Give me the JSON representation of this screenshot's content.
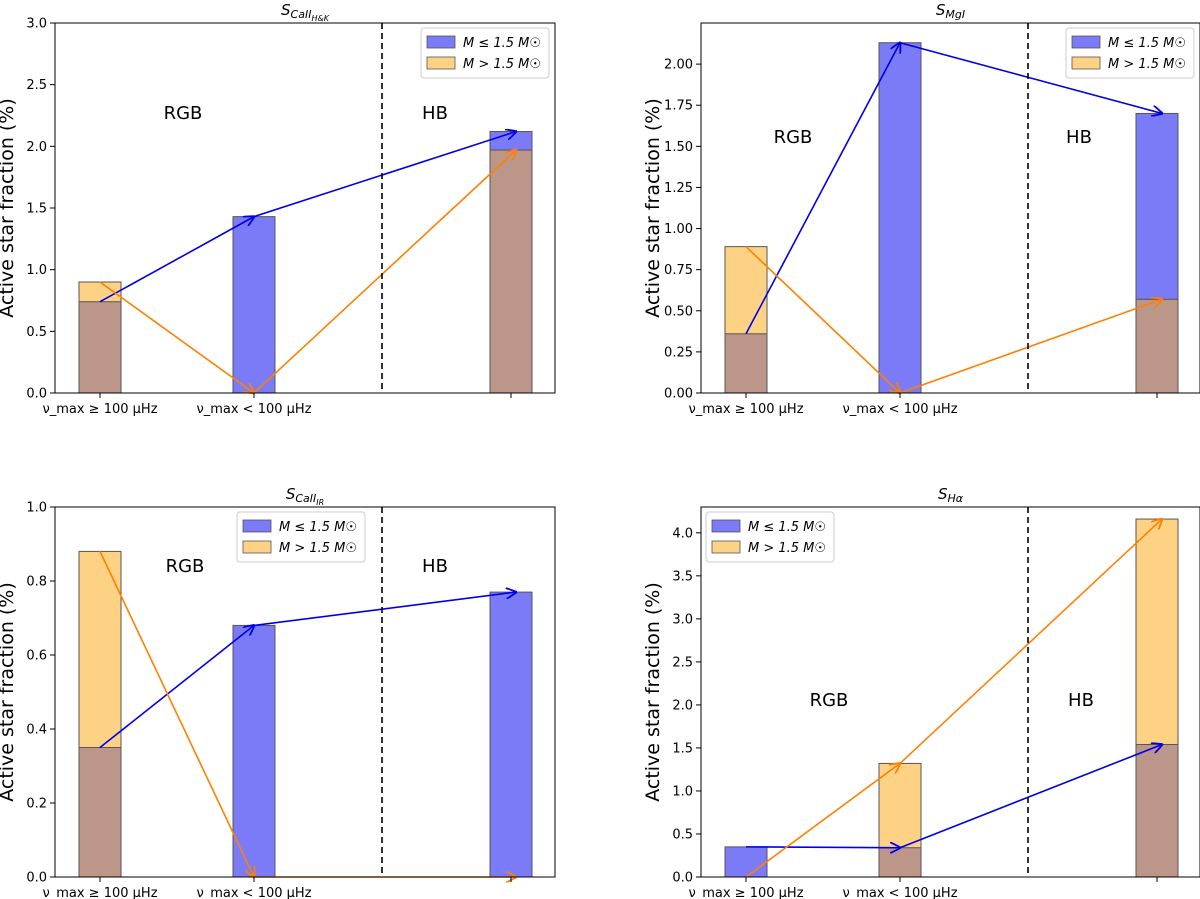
{
  "colors": {
    "low_mass": "#7b7bf7",
    "high_mass": "#fed285",
    "overlap": "#bd968a",
    "blue_arrow": "#0000e8",
    "orange_arrow": "#ff8000"
  },
  "legend": {
    "low_mass_label": "M ≤ 1.5 M☉",
    "high_mass_label": "M > 1.5 M☉"
  },
  "x_tick_labels": [
    "ν_max ≥ 100 μHz",
    "ν_max < 100 μHz"
  ],
  "chart_data": [
    {
      "type": "bar",
      "title": "S_CaII_H&K",
      "ylabel": "Active star fraction (%)",
      "ylim": [
        0,
        3.0
      ],
      "yticks": [
        0.0,
        0.5,
        1.0,
        1.5,
        2.0,
        2.5,
        3.0
      ],
      "ytick_labels": [
        "0.0",
        "0.5",
        "1.0",
        "1.5",
        "2.0",
        "2.5",
        "3.0"
      ],
      "regions": [
        "RGB",
        "HB"
      ],
      "legend_position": "top-right",
      "categories": [
        "ν_max ≥ 100 μHz",
        "ν_max < 100 μHz",
        "HB"
      ],
      "series": [
        {
          "name": "M ≤ 1.5 M☉",
          "values": [
            0.74,
            1.43,
            2.12
          ]
        },
        {
          "name": "M > 1.5 M☉",
          "values": [
            0.9,
            0.0,
            1.97
          ]
        }
      ]
    },
    {
      "type": "bar",
      "title": "S_MgI",
      "ylabel": "Active star fraction (%)",
      "ylim": [
        0,
        2.25
      ],
      "yticks": [
        0.0,
        0.25,
        0.5,
        0.75,
        1.0,
        1.25,
        1.5,
        1.75,
        2.0
      ],
      "ytick_labels": [
        "0.00",
        "0.25",
        "0.50",
        "0.75",
        "1.00",
        "1.25",
        "1.50",
        "1.75",
        "2.00"
      ],
      "regions": [
        "RGB",
        "HB"
      ],
      "legend_position": "top-right",
      "categories": [
        "ν_max ≥ 100 μHz",
        "ν_max < 100 μHz",
        "HB"
      ],
      "series": [
        {
          "name": "M ≤ 1.5 M☉",
          "values": [
            0.36,
            2.13,
            1.7
          ]
        },
        {
          "name": "M > 1.5 M☉",
          "values": [
            0.89,
            0.0,
            0.57
          ]
        }
      ]
    },
    {
      "type": "bar",
      "title": "S_CaII_IR",
      "ylabel": "Active star fraction (%)",
      "ylim": [
        0,
        1.0
      ],
      "yticks": [
        0.0,
        0.2,
        0.4,
        0.6,
        0.8,
        1.0
      ],
      "ytick_labels": [
        "0.0",
        "0.2",
        "0.4",
        "0.6",
        "0.8",
        "1.0"
      ],
      "regions": [
        "RGB",
        "HB"
      ],
      "legend_position": "upper-center",
      "categories": [
        "ν_max ≥ 100 μHz",
        "ν_max < 100 μHz",
        "HB"
      ],
      "series": [
        {
          "name": "M ≤ 1.5 M☉",
          "values": [
            0.35,
            0.68,
            0.77
          ]
        },
        {
          "name": "M > 1.5 M☉",
          "values": [
            0.88,
            0.0,
            0.0
          ]
        }
      ]
    },
    {
      "type": "bar",
      "title": "S_Hα",
      "ylabel": "Active star fraction (%)",
      "ylim": [
        0,
        4.3
      ],
      "yticks": [
        0.0,
        0.5,
        1.0,
        1.5,
        2.0,
        2.5,
        3.0,
        3.5,
        4.0
      ],
      "ytick_labels": [
        "0.0",
        "0.5",
        "1.0",
        "1.5",
        "2.0",
        "2.5",
        "3.0",
        "3.5",
        "4.0"
      ],
      "regions": [
        "RGB",
        "HB"
      ],
      "legend_position": "top-left",
      "categories": [
        "ν_max ≥ 100 μHz",
        "ν_max < 100 μHz",
        "HB"
      ],
      "series": [
        {
          "name": "M ≤ 1.5 M☉",
          "values": [
            0.35,
            0.34,
            1.54
          ]
        },
        {
          "name": "M > 1.5 M☉",
          "values": [
            0.0,
            1.32,
            4.16
          ]
        }
      ]
    }
  ]
}
